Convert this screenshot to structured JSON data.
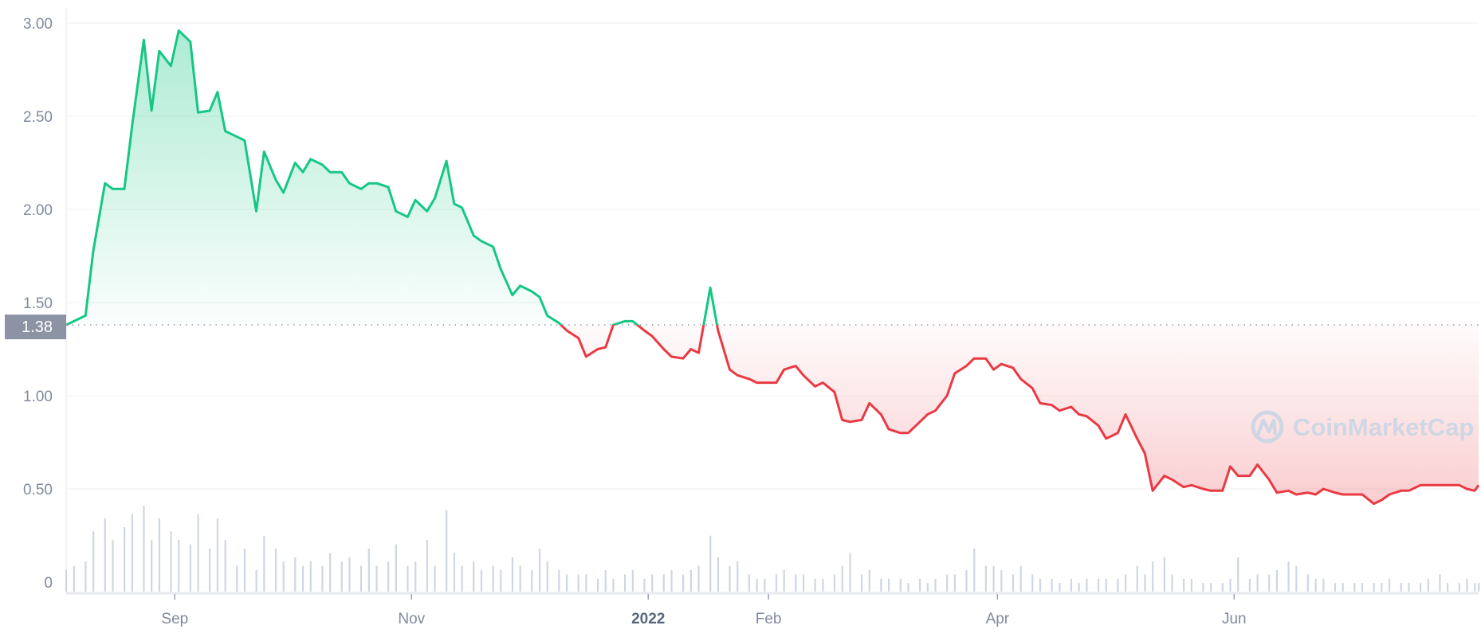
{
  "chart_data": {
    "type": "area",
    "reference_price": 1.38,
    "reference_label": "1.38",
    "ylim": [
      0,
      3.0
    ],
    "y_ticks": [
      "0",
      "0.50",
      "1.00",
      "1.50",
      "2.00",
      "2.50",
      "3.00"
    ],
    "y_tick_values": [
      0,
      0.5,
      1.0,
      1.5,
      2.0,
      2.5,
      3.0
    ],
    "x_range": [
      "2021-08-04",
      "2022-08-03"
    ],
    "x_ticks": [
      {
        "label": "Sep",
        "date": "2021-09-01",
        "bold": false
      },
      {
        "label": "Nov",
        "date": "2021-11-01",
        "bold": false
      },
      {
        "label": "2022",
        "date": "2022-01-01",
        "bold": true
      },
      {
        "label": "Feb",
        "date": "2022-02-01",
        "bold": false
      },
      {
        "label": "Apr",
        "date": "2022-04-01",
        "bold": false
      },
      {
        "label": "Jun",
        "date": "2022-06-01",
        "bold": false
      }
    ],
    "grid": true,
    "colors": {
      "above": "#16c784",
      "below": "#ea3943",
      "grid": "#eff2f5",
      "label": "#808a9d",
      "volume": "#cfd6e4",
      "ref_label_bg": "#8c93a4"
    },
    "watermark": "CoinMarketCap",
    "series": [
      {
        "x": [
          "2021-08-04",
          "2021-08-06",
          "2021-08-09",
          "2021-08-11",
          "2021-08-14",
          "2021-08-16",
          "2021-08-19",
          "2021-08-21",
          "2021-08-24",
          "2021-08-26",
          "2021-08-28",
          "2021-08-31",
          "2021-09-02",
          "2021-09-05",
          "2021-09-07",
          "2021-09-10",
          "2021-09-12",
          "2021-09-14",
          "2021-09-17",
          "2021-09-19",
          "2021-09-22",
          "2021-09-24",
          "2021-09-27",
          "2021-09-29",
          "2021-10-02",
          "2021-10-04",
          "2021-10-06",
          "2021-10-09",
          "2021-10-11",
          "2021-10-14",
          "2021-10-16",
          "2021-10-19",
          "2021-10-21",
          "2021-10-23",
          "2021-10-26",
          "2021-10-28",
          "2021-10-31",
          "2021-11-02",
          "2021-11-05",
          "2021-11-07",
          "2021-11-10",
          "2021-11-12",
          "2021-11-14",
          "2021-11-17",
          "2021-11-19",
          "2021-11-22",
          "2021-11-24",
          "2021-11-27",
          "2021-11-29",
          "2021-12-02",
          "2021-12-04",
          "2021-12-06",
          "2021-12-09",
          "2021-12-11",
          "2021-12-14",
          "2021-12-16",
          "2021-12-19",
          "2021-12-21",
          "2021-12-23",
          "2021-12-26",
          "2021-12-28",
          "2021-12-31",
          "2022-01-02",
          "2022-01-05",
          "2022-01-07",
          "2022-01-10",
          "2022-01-12",
          "2022-01-14",
          "2022-01-17",
          "2022-01-19",
          "2022-01-22",
          "2022-01-24",
          "2022-01-27",
          "2022-01-29",
          "2022-01-31",
          "2022-02-03",
          "2022-02-05",
          "2022-02-08",
          "2022-02-10",
          "2022-02-13",
          "2022-02-15",
          "2022-02-18",
          "2022-02-20",
          "2022-02-22",
          "2022-02-25",
          "2022-02-27",
          "2022-03-02",
          "2022-03-04",
          "2022-03-07",
          "2022-03-09",
          "2022-03-12",
          "2022-03-14",
          "2022-03-16",
          "2022-03-19",
          "2022-03-21",
          "2022-03-24",
          "2022-03-26",
          "2022-03-29",
          "2022-03-31",
          "2022-04-02",
          "2022-04-05",
          "2022-04-07",
          "2022-04-10",
          "2022-04-12",
          "2022-04-15",
          "2022-04-17",
          "2022-04-20",
          "2022-04-22",
          "2022-04-24",
          "2022-04-27",
          "2022-04-29",
          "2022-05-02",
          "2022-05-04",
          "2022-05-07",
          "2022-05-09",
          "2022-05-11",
          "2022-05-14",
          "2022-05-16",
          "2022-05-19",
          "2022-05-21",
          "2022-05-24",
          "2022-05-26",
          "2022-05-29",
          "2022-05-31",
          "2022-06-02",
          "2022-06-05",
          "2022-06-07",
          "2022-06-10",
          "2022-06-12",
          "2022-06-15",
          "2022-06-17",
          "2022-06-20",
          "2022-06-22",
          "2022-06-24",
          "2022-06-27",
          "2022-06-29",
          "2022-07-02",
          "2022-07-04",
          "2022-07-07",
          "2022-07-09",
          "2022-07-11",
          "2022-07-14",
          "2022-07-16",
          "2022-07-19",
          "2022-07-21",
          "2022-07-24",
          "2022-07-26",
          "2022-07-29",
          "2022-07-31",
          "2022-08-02",
          "2022-08-03"
        ],
        "price": [
          1.38,
          1.4,
          1.43,
          1.78,
          2.14,
          2.11,
          2.11,
          2.45,
          2.91,
          2.53,
          2.85,
          2.77,
          2.96,
          2.9,
          2.52,
          2.53,
          2.63,
          2.42,
          2.39,
          2.37,
          1.99,
          2.31,
          2.16,
          2.09,
          2.25,
          2.2,
          2.27,
          2.24,
          2.2,
          2.2,
          2.14,
          2.11,
          2.14,
          2.14,
          2.12,
          1.99,
          1.96,
          2.05,
          1.99,
          2.06,
          2.26,
          2.03,
          2.01,
          1.86,
          1.83,
          1.8,
          1.68,
          1.54,
          1.59,
          1.56,
          1.53,
          1.43,
          1.39,
          1.35,
          1.31,
          1.21,
          1.25,
          1.26,
          1.38,
          1.4,
          1.4,
          1.35,
          1.32,
          1.25,
          1.21,
          1.2,
          1.25,
          1.23,
          1.58,
          1.35,
          1.14,
          1.11,
          1.09,
          1.07,
          1.07,
          1.07,
          1.14,
          1.16,
          1.11,
          1.05,
          1.07,
          1.02,
          0.87,
          0.86,
          0.87,
          0.96,
          0.9,
          0.82,
          0.8,
          0.8,
          0.86,
          0.9,
          0.92,
          1.0,
          1.12,
          1.16,
          1.2,
          1.2,
          1.14,
          1.17,
          1.15,
          1.09,
          1.04,
          0.96,
          0.95,
          0.92,
          0.94,
          0.9,
          0.89,
          0.84,
          0.77,
          0.8,
          0.9,
          0.77,
          0.69,
          0.49,
          0.57,
          0.55,
          0.51,
          0.52,
          0.5,
          0.49,
          0.49,
          0.62,
          0.57,
          0.57,
          0.63,
          0.55,
          0.48,
          0.49,
          0.47,
          0.48,
          0.47,
          0.5,
          0.48,
          0.47,
          0.47,
          0.47,
          0.42,
          0.44,
          0.47,
          0.49,
          0.49,
          0.52,
          0.52,
          0.52,
          0.52,
          0.52,
          0.5,
          0.49,
          0.52
        ],
        "volume_relative": [
          0.25,
          0.3,
          0.35,
          0.7,
          0.85,
          0.6,
          0.75,
          0.9,
          1.0,
          0.6,
          0.85,
          0.7,
          0.6,
          0.55,
          0.9,
          0.5,
          0.85,
          0.6,
          0.3,
          0.5,
          0.25,
          0.65,
          0.5,
          0.35,
          0.4,
          0.3,
          0.35,
          0.3,
          0.45,
          0.35,
          0.4,
          0.3,
          0.5,
          0.3,
          0.35,
          0.55,
          0.3,
          0.35,
          0.6,
          0.3,
          0.95,
          0.45,
          0.3,
          0.35,
          0.25,
          0.3,
          0.25,
          0.4,
          0.3,
          0.25,
          0.5,
          0.35,
          0.25,
          0.2,
          0.2,
          0.2,
          0.15,
          0.25,
          0.15,
          0.2,
          0.25,
          0.15,
          0.2,
          0.2,
          0.25,
          0.2,
          0.25,
          0.3,
          0.65,
          0.4,
          0.3,
          0.35,
          0.2,
          0.15,
          0.15,
          0.2,
          0.25,
          0.2,
          0.2,
          0.15,
          0.15,
          0.2,
          0.3,
          0.45,
          0.2,
          0.25,
          0.15,
          0.15,
          0.15,
          0.1,
          0.15,
          0.1,
          0.15,
          0.2,
          0.2,
          0.25,
          0.5,
          0.3,
          0.3,
          0.25,
          0.2,
          0.3,
          0.2,
          0.15,
          0.15,
          0.1,
          0.15,
          0.1,
          0.15,
          0.15,
          0.15,
          0.15,
          0.2,
          0.3,
          0.2,
          0.35,
          0.4,
          0.2,
          0.15,
          0.15,
          0.1,
          0.1,
          0.1,
          0.15,
          0.4,
          0.15,
          0.2,
          0.2,
          0.25,
          0.35,
          0.3,
          0.2,
          0.15,
          0.15,
          0.1,
          0.1,
          0.1,
          0.1,
          0.1,
          0.1,
          0.15,
          0.1,
          0.1,
          0.1,
          0.15,
          0.2,
          0.1,
          0.1,
          0.15,
          0.1,
          0.1
        ]
      }
    ]
  }
}
